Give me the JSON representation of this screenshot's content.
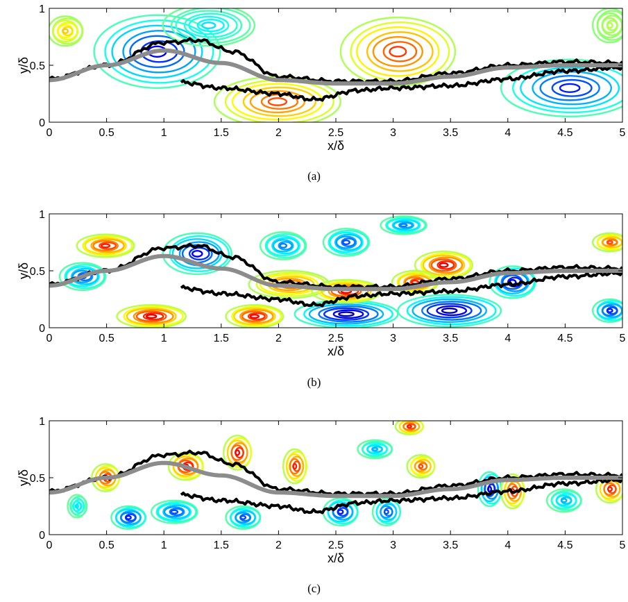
{
  "figure": {
    "panels": [
      {
        "caption": "(a)",
        "xlabel": "x/δ",
        "ylabel": "y/δ"
      },
      {
        "caption": "(b)",
        "xlabel": "x/δ",
        "ylabel": "y/δ"
      },
      {
        "caption": "(c)",
        "xlabel": "x/δ",
        "ylabel": "y/δ"
      }
    ]
  },
  "chart_data": [
    {
      "type": "contour",
      "caption": "(a)",
      "xlabel": "x/δ",
      "ylabel": "y/δ",
      "xlim": [
        0,
        5
      ],
      "ylim": [
        0,
        1
      ],
      "xticks": [
        0,
        0.5,
        1,
        1.5,
        2,
        2.5,
        3,
        3.5,
        4,
        4.5,
        5
      ],
      "yticks": [
        0,
        0.5,
        1
      ],
      "xtick_labels": [
        "0",
        "0.5",
        "1",
        "1.5",
        "2",
        "2.5",
        "3",
        "3.5",
        "4",
        "4.5",
        "5"
      ],
      "ytick_labels": [
        "0",
        "0.5",
        "1"
      ],
      "colormap": "jet",
      "vortices": [
        {
          "x": 0.15,
          "y": 0.8,
          "rx": 0.15,
          "ry": 0.13,
          "level": 0.68
        },
        {
          "x": 0.95,
          "y": 0.62,
          "rx": 0.55,
          "ry": 0.32,
          "level": 0.12
        },
        {
          "x": 2.0,
          "y": 0.18,
          "rx": 0.55,
          "ry": 0.22,
          "level": 0.8
        },
        {
          "x": 3.05,
          "y": 0.62,
          "rx": 0.5,
          "ry": 0.3,
          "level": 0.82
        },
        {
          "x": 4.55,
          "y": 0.3,
          "rx": 0.6,
          "ry": 0.25,
          "level": 0.15
        },
        {
          "x": 1.4,
          "y": 0.85,
          "rx": 0.4,
          "ry": 0.18,
          "level": 0.35
        },
        {
          "x": 4.9,
          "y": 0.85,
          "rx": 0.15,
          "ry": 0.15,
          "level": 0.55
        }
      ],
      "mean_interface": {
        "x": [
          0,
          0.5,
          1.0,
          1.5,
          2.0,
          2.5,
          3.0,
          3.5,
          4.0,
          4.5,
          5.0
        ],
        "y": [
          0.37,
          0.5,
          0.63,
          0.52,
          0.37,
          0.34,
          0.34,
          0.4,
          0.48,
          0.5,
          0.5
        ]
      },
      "interface_upper": {
        "x": [
          0,
          0.5,
          1.0,
          1.3,
          1.6,
          2.0,
          2.5,
          3.0,
          3.5,
          4.0,
          4.5,
          5.0
        ],
        "y": [
          0.38,
          0.5,
          0.7,
          0.72,
          0.62,
          0.4,
          0.36,
          0.36,
          0.43,
          0.5,
          0.53,
          0.52
        ]
      },
      "interface_lower": {
        "x": [
          1.15,
          1.5,
          2.0,
          2.3,
          2.7,
          3.0,
          3.5,
          4.0,
          4.5,
          5.0
        ],
        "y": [
          0.35,
          0.3,
          0.25,
          0.2,
          0.28,
          0.3,
          0.32,
          0.38,
          0.45,
          0.48
        ]
      }
    },
    {
      "type": "contour",
      "caption": "(b)",
      "xlabel": "x/δ",
      "ylabel": "y/δ",
      "xlim": [
        0,
        5
      ],
      "ylim": [
        0,
        1
      ],
      "xticks": [
        0,
        0.5,
        1,
        1.5,
        2,
        2.5,
        3,
        3.5,
        4,
        4.5,
        5
      ],
      "yticks": [
        0,
        0.5,
        1
      ],
      "xtick_labels": [
        "0",
        "0.5",
        "1",
        "1.5",
        "2",
        "2.5",
        "3",
        "3.5",
        "4",
        "4.5",
        "5"
      ],
      "ytick_labels": [
        "0",
        "0.5",
        "1"
      ],
      "colormap": "jet",
      "vortices": [
        {
          "x": 0.5,
          "y": 0.72,
          "rx": 0.25,
          "ry": 0.1,
          "level": 0.85
        },
        {
          "x": 1.3,
          "y": 0.65,
          "rx": 0.3,
          "ry": 0.18,
          "level": 0.12
        },
        {
          "x": 0.3,
          "y": 0.45,
          "rx": 0.2,
          "ry": 0.12,
          "level": 0.2
        },
        {
          "x": 0.9,
          "y": 0.1,
          "rx": 0.3,
          "ry": 0.1,
          "level": 0.9
        },
        {
          "x": 1.8,
          "y": 0.1,
          "rx": 0.25,
          "ry": 0.1,
          "level": 0.88
        },
        {
          "x": 2.6,
          "y": 0.12,
          "rx": 0.45,
          "ry": 0.12,
          "level": 0.05
        },
        {
          "x": 3.5,
          "y": 0.15,
          "rx": 0.45,
          "ry": 0.14,
          "level": 0.05
        },
        {
          "x": 2.1,
          "y": 0.38,
          "rx": 0.35,
          "ry": 0.12,
          "level": 0.8
        },
        {
          "x": 2.6,
          "y": 0.32,
          "rx": 0.3,
          "ry": 0.1,
          "level": 0.88
        },
        {
          "x": 3.45,
          "y": 0.55,
          "rx": 0.25,
          "ry": 0.12,
          "level": 0.9
        },
        {
          "x": 4.05,
          "y": 0.4,
          "rx": 0.2,
          "ry": 0.14,
          "level": 0.1
        },
        {
          "x": 3.2,
          "y": 0.4,
          "rx": 0.2,
          "ry": 0.1,
          "level": 0.85
        },
        {
          "x": 2.05,
          "y": 0.72,
          "rx": 0.2,
          "ry": 0.12,
          "level": 0.25
        },
        {
          "x": 2.6,
          "y": 0.75,
          "rx": 0.2,
          "ry": 0.12,
          "level": 0.2
        },
        {
          "x": 3.1,
          "y": 0.9,
          "rx": 0.2,
          "ry": 0.08,
          "level": 0.25
        },
        {
          "x": 4.9,
          "y": 0.75,
          "rx": 0.15,
          "ry": 0.08,
          "level": 0.8
        },
        {
          "x": 4.9,
          "y": 0.15,
          "rx": 0.15,
          "ry": 0.1,
          "level": 0.15
        }
      ],
      "mean_interface": {
        "x": [
          0,
          0.5,
          1.0,
          1.5,
          2.0,
          2.5,
          3.0,
          3.5,
          4.0,
          4.5,
          5.0
        ],
        "y": [
          0.37,
          0.5,
          0.63,
          0.52,
          0.37,
          0.34,
          0.34,
          0.4,
          0.48,
          0.5,
          0.5
        ]
      },
      "interface_upper": {
        "x": [
          0,
          0.5,
          1.0,
          1.3,
          1.6,
          2.0,
          2.5,
          3.0,
          3.5,
          4.0,
          4.5,
          5.0
        ],
        "y": [
          0.38,
          0.5,
          0.7,
          0.72,
          0.62,
          0.4,
          0.36,
          0.36,
          0.43,
          0.5,
          0.53,
          0.52
        ]
      },
      "interface_lower": {
        "x": [
          1.15,
          1.5,
          2.0,
          2.3,
          2.7,
          3.0,
          3.5,
          4.0,
          4.5,
          5.0
        ],
        "y": [
          0.35,
          0.3,
          0.25,
          0.2,
          0.28,
          0.3,
          0.32,
          0.38,
          0.45,
          0.48
        ]
      }
    },
    {
      "type": "contour",
      "caption": "(c)",
      "xlabel": "x/δ",
      "ylabel": "y/δ",
      "xlim": [
        0,
        5
      ],
      "ylim": [
        0,
        1
      ],
      "xticks": [
        0,
        0.5,
        1,
        1.5,
        2,
        2.5,
        3,
        3.5,
        4,
        4.5,
        5
      ],
      "yticks": [
        0,
        0.5,
        1
      ],
      "xtick_labels": [
        "0",
        "0.5",
        "1",
        "1.5",
        "2",
        "2.5",
        "3",
        "3.5",
        "4",
        "4.5",
        "5"
      ],
      "ytick_labels": [
        "0",
        "0.5",
        "1"
      ],
      "colormap": "jet",
      "vortices": [
        {
          "x": 0.5,
          "y": 0.5,
          "rx": 0.12,
          "ry": 0.12,
          "level": 0.85
        },
        {
          "x": 1.2,
          "y": 0.6,
          "rx": 0.15,
          "ry": 0.12,
          "level": 0.9
        },
        {
          "x": 1.65,
          "y": 0.72,
          "rx": 0.12,
          "ry": 0.15,
          "level": 0.88
        },
        {
          "x": 2.15,
          "y": 0.6,
          "rx": 0.1,
          "ry": 0.15,
          "level": 0.85
        },
        {
          "x": 0.7,
          "y": 0.15,
          "rx": 0.15,
          "ry": 0.1,
          "level": 0.15
        },
        {
          "x": 1.1,
          "y": 0.2,
          "rx": 0.2,
          "ry": 0.1,
          "level": 0.2
        },
        {
          "x": 1.7,
          "y": 0.15,
          "rx": 0.15,
          "ry": 0.1,
          "level": 0.2
        },
        {
          "x": 2.55,
          "y": 0.2,
          "rx": 0.15,
          "ry": 0.12,
          "level": 0.15
        },
        {
          "x": 2.95,
          "y": 0.2,
          "rx": 0.12,
          "ry": 0.12,
          "level": 0.2
        },
        {
          "x": 3.85,
          "y": 0.4,
          "rx": 0.1,
          "ry": 0.15,
          "level": 0.1
        },
        {
          "x": 4.05,
          "y": 0.38,
          "rx": 0.1,
          "ry": 0.15,
          "level": 0.85
        },
        {
          "x": 3.25,
          "y": 0.6,
          "rx": 0.12,
          "ry": 0.1,
          "level": 0.8
        },
        {
          "x": 3.15,
          "y": 0.95,
          "rx": 0.12,
          "ry": 0.07,
          "level": 0.85
        },
        {
          "x": 2.85,
          "y": 0.75,
          "rx": 0.15,
          "ry": 0.08,
          "level": 0.3
        },
        {
          "x": 4.9,
          "y": 0.4,
          "rx": 0.12,
          "ry": 0.12,
          "level": 0.85
        },
        {
          "x": 4.5,
          "y": 0.3,
          "rx": 0.15,
          "ry": 0.1,
          "level": 0.3
        },
        {
          "x": 0.25,
          "y": 0.25,
          "rx": 0.08,
          "ry": 0.1,
          "level": 0.35
        }
      ],
      "mean_interface": {
        "x": [
          0,
          0.5,
          1.0,
          1.5,
          2.0,
          2.5,
          3.0,
          3.5,
          4.0,
          4.5,
          5.0
        ],
        "y": [
          0.37,
          0.5,
          0.63,
          0.52,
          0.37,
          0.34,
          0.34,
          0.4,
          0.48,
          0.5,
          0.5
        ]
      },
      "interface_upper": {
        "x": [
          0,
          0.5,
          1.0,
          1.3,
          1.6,
          2.0,
          2.5,
          3.0,
          3.5,
          4.0,
          4.5,
          5.0
        ],
        "y": [
          0.38,
          0.5,
          0.7,
          0.72,
          0.62,
          0.4,
          0.36,
          0.36,
          0.43,
          0.5,
          0.53,
          0.52
        ]
      },
      "interface_lower": {
        "x": [
          1.15,
          1.5,
          2.0,
          2.3,
          2.7,
          3.0,
          3.5,
          4.0,
          4.5,
          5.0
        ],
        "y": [
          0.35,
          0.3,
          0.25,
          0.2,
          0.28,
          0.3,
          0.32,
          0.38,
          0.45,
          0.48
        ]
      }
    }
  ]
}
